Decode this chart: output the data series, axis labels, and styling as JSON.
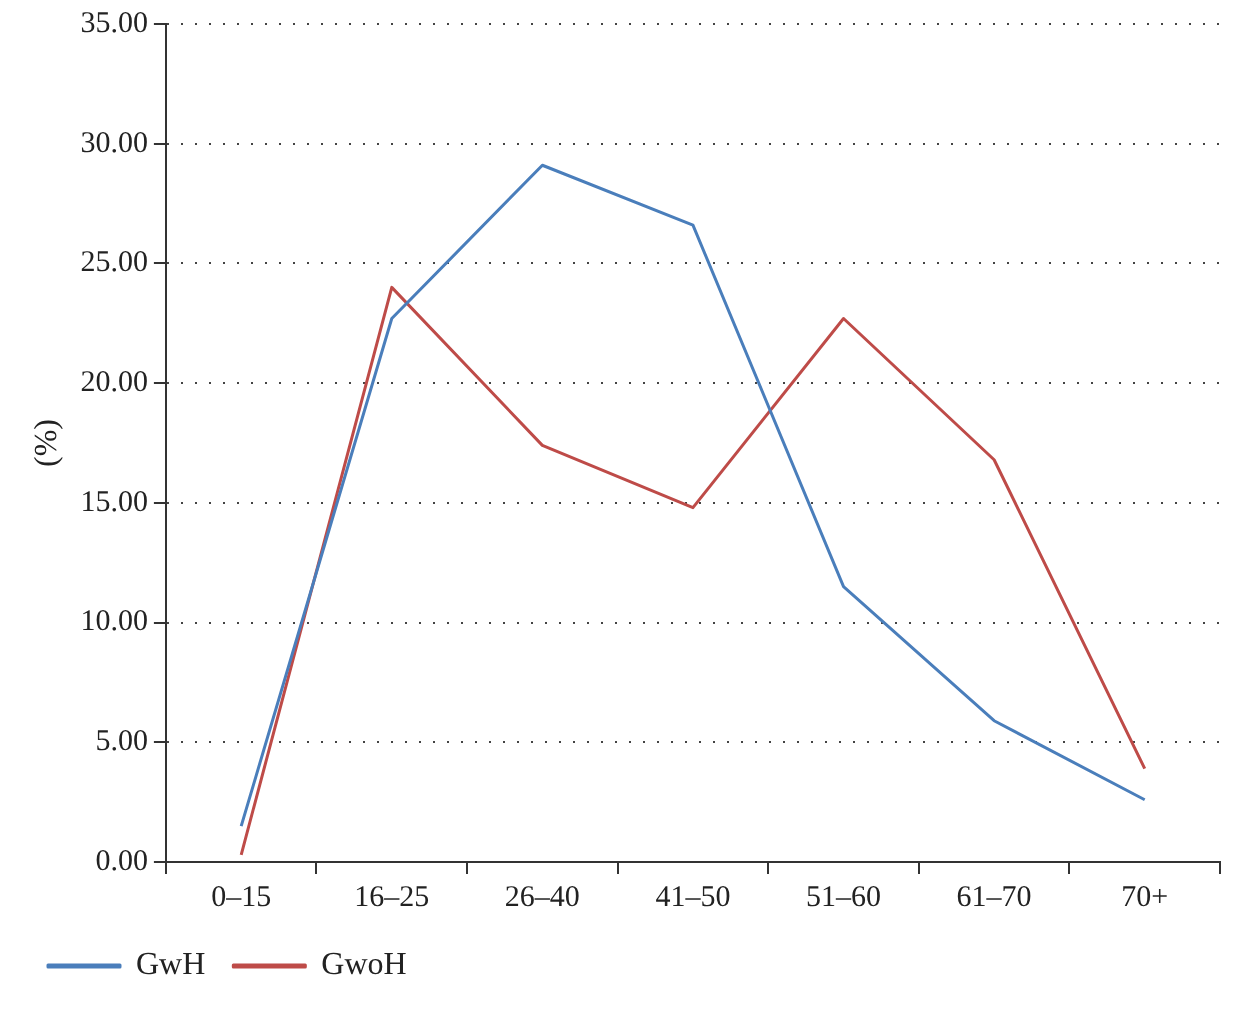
{
  "chart_data": {
    "type": "line",
    "ylabel": "(%)",
    "categories": [
      "0–15",
      "16–25",
      "26–40",
      "41–50",
      "51–60",
      "61–70",
      "70+"
    ],
    "series": [
      {
        "name": "GwH",
        "color": "#4a7ebb",
        "values": [
          1.5,
          22.7,
          29.1,
          26.6,
          11.5,
          5.9,
          2.6
        ]
      },
      {
        "name": "GwoH",
        "color": "#be4b48",
        "values": [
          0.3,
          24.0,
          17.4,
          14.8,
          22.7,
          16.8,
          3.9
        ]
      }
    ],
    "ylim": [
      0,
      35
    ],
    "yticks": [
      {
        "value": 0,
        "label": "0.00"
      },
      {
        "value": 5,
        "label": "5.00"
      },
      {
        "value": 10,
        "label": "10.00"
      },
      {
        "value": 15,
        "label": "15.00"
      },
      {
        "value": 20,
        "label": "20.00"
      },
      {
        "value": 25,
        "label": "25.00"
      },
      {
        "value": 30,
        "label": "30.00"
      },
      {
        "value": 35,
        "label": "35.00"
      }
    ],
    "grid": "y",
    "legend": "bottom left",
    "marker": "none",
    "line_style": "solid"
  }
}
